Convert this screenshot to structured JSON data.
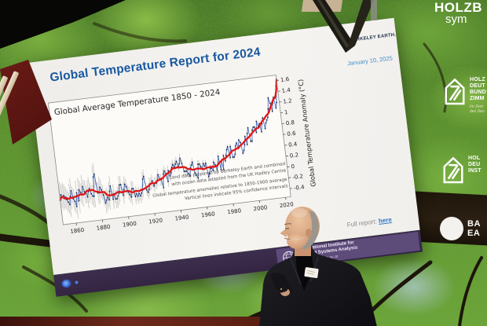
{
  "slide": {
    "title": "Global Temperature Report for 2024",
    "berkeley_logo": {
      "text": "BERKELEY EARTH."
    },
    "date": "January 10, 2025",
    "full_report": {
      "label": "Full report:",
      "link": "here"
    },
    "footer": {
      "iiasa": {
        "line1": "International Institute for",
        "line2": "Applied Systems Analysis",
        "url": "IIASA   www.iiasa.ac.at"
      }
    },
    "accent_color": "#1758a0"
  },
  "chart_data": {
    "type": "line",
    "title": "Global Average Temperature 1850 - 2024",
    "ylabel": "Global Temperature Anomaly (°C)",
    "xlim": [
      1850,
      2024
    ],
    "ylim": [
      -0.55,
      1.7
    ],
    "x_ticks": [
      1860,
      1880,
      1900,
      1920,
      1940,
      1960,
      1980,
      2000,
      2020
    ],
    "y_ticks": [
      1.6,
      1.4,
      1.2,
      1,
      0.8,
      0.6,
      0.4,
      0.2,
      0,
      -0.2,
      -0.4
    ],
    "grid": false,
    "legend": "none",
    "start_year": 1850,
    "series": [
      {
        "name": "Annual average with 95% confidence interval",
        "color": "#4a6bb5",
        "point_color": "#1b2a55",
        "values": [
          -0.1,
          0.0,
          -0.05,
          -0.02,
          -0.05,
          -0.1,
          -0.15,
          -0.2,
          -0.05,
          0.05,
          -0.1,
          -0.15,
          -0.25,
          0.0,
          -0.15,
          0.05,
          0.0,
          -0.05,
          0.1,
          0.0,
          0.0,
          -0.1,
          0.0,
          0.05,
          -0.05,
          -0.1,
          -0.1,
          0.25,
          0.3,
          -0.05,
          -0.05,
          0.05,
          0.0,
          -0.1,
          -0.25,
          -0.2,
          -0.15,
          -0.2,
          -0.05,
          0.05,
          -0.2,
          -0.1,
          -0.2,
          -0.2,
          -0.15,
          -0.1,
          0.05,
          0.05,
          -0.15,
          -0.05,
          0.05,
          0.0,
          -0.1,
          -0.15,
          -0.2,
          -0.05,
          -0.05,
          -0.2,
          -0.15,
          -0.2,
          -0.15,
          -0.2,
          -0.15,
          -0.1,
          0.1,
          0.15,
          -0.1,
          -0.15,
          -0.1,
          0.0,
          0.0,
          0.05,
          -0.05,
          0.0,
          0.0,
          0.05,
          0.15,
          0.05,
          0.05,
          -0.1,
          0.15,
          0.2,
          0.15,
          0.0,
          0.2,
          0.1,
          0.15,
          0.25,
          0.3,
          0.25,
          0.3,
          0.35,
          0.25,
          0.3,
          0.4,
          0.3,
          0.15,
          0.15,
          0.15,
          0.1,
          0.05,
          0.2,
          0.25,
          0.3,
          0.1,
          0.05,
          0.0,
          0.25,
          0.25,
          0.2,
          0.15,
          0.25,
          0.2,
          0.25,
          0.0,
          0.05,
          0.15,
          0.15,
          0.1,
          0.25,
          0.2,
          0.1,
          0.2,
          0.35,
          0.1,
          0.25,
          0.1,
          0.35,
          0.25,
          0.35,
          0.45,
          0.5,
          0.3,
          0.5,
          0.3,
          0.3,
          0.35,
          0.5,
          0.55,
          0.45,
          0.6,
          0.55,
          0.35,
          0.4,
          0.5,
          0.65,
          0.5,
          0.7,
          0.8,
          0.55,
          0.55,
          0.75,
          0.8,
          0.8,
          0.7,
          0.9,
          0.8,
          0.85,
          0.7,
          0.85,
          0.95,
          0.75,
          0.85,
          0.9,
          0.95,
          1.1,
          1.3,
          1.2,
          1.05,
          1.2,
          1.3,
          1.1,
          1.2,
          1.5,
          1.62
        ]
      },
      {
        "name": "Smoothed (multi-year average)",
        "color": "#e01616",
        "derived": "moving-average"
      }
    ],
    "ci_anchors": [
      [
        1850,
        0.24
      ],
      [
        1880,
        0.2
      ],
      [
        1900,
        0.15
      ],
      [
        1930,
        0.1
      ],
      [
        1960,
        0.07
      ],
      [
        1980,
        0.04
      ],
      [
        2024,
        0.025
      ]
    ],
    "annotations": [
      "Land data prepared by Berkeley Earth and combined",
      "with ocean data adapted from the UK Hadley Centre",
      "Global temperature anomalies relative to 1850-1900 average",
      "Vertical lines indicate 95% confidence intervals"
    ]
  },
  "venue": {
    "banner_top": {
      "line1": "HOLZB",
      "line2": "sym"
    },
    "holzbau_logo": {
      "lines": [
        "HOLZ",
        "DEUT",
        "BUND",
        "ZIMM"
      ],
      "sub": [
        "Im Zent",
        "des Deu"
      ]
    },
    "institut_logo": {
      "lines": [
        "HOL",
        "DEU",
        "INST"
      ]
    },
    "circle_logo": {
      "lines": [
        "BA",
        "EA"
      ]
    }
  }
}
